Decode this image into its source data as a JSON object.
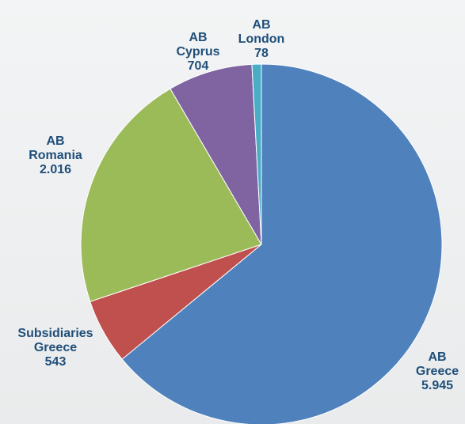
{
  "chart_data": {
    "type": "pie",
    "categories": [
      "AB Greece",
      "Subsidiaries Greece",
      "AB Romania",
      "AB Cyprus",
      "AB London"
    ],
    "values": [
      5945,
      543,
      2016,
      704,
      78
    ],
    "value_labels": [
      "5.945",
      "543",
      "2.016",
      "704",
      "78"
    ],
    "colors": [
      "#4f81bd",
      "#c0504d",
      "#9bbb59",
      "#8064a2",
      "#4bacc6"
    ]
  }
}
